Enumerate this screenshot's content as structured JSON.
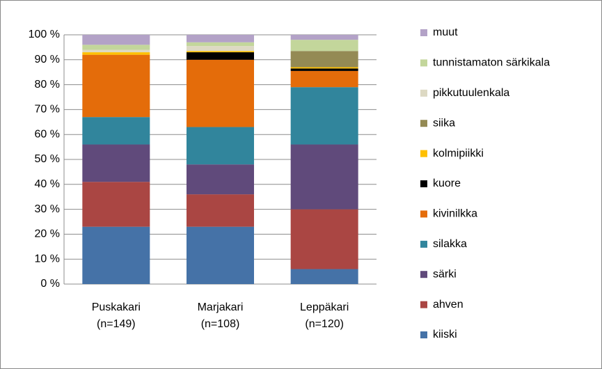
{
  "chart_data": {
    "type": "stacked_bar_percent",
    "categories": [
      [
        "Puskakari",
        "(n=149)"
      ],
      [
        "Marjakari",
        "(n=108)"
      ],
      [
        "Leppäkari",
        "(n=120)"
      ]
    ],
    "series": [
      {
        "name": "kiiski",
        "color": "#4572a7",
        "values": [
          23,
          23,
          6
        ]
      },
      {
        "name": "ahven",
        "color": "#aa4643",
        "values": [
          18,
          13,
          24
        ]
      },
      {
        "name": "särki",
        "color": "#604a7b",
        "values": [
          15,
          12,
          26
        ]
      },
      {
        "name": "silakka",
        "color": "#31859c",
        "values": [
          11,
          15,
          23
        ]
      },
      {
        "name": "kivinilkka",
        "color": "#e46c0a",
        "values": [
          25,
          27,
          6.5
        ]
      },
      {
        "name": "kuore",
        "color": "#000000",
        "values": [
          0,
          3,
          1
        ]
      },
      {
        "name": "kolmipiikki",
        "color": "#ffc000",
        "values": [
          1,
          0.5,
          0.5
        ]
      },
      {
        "name": "siika",
        "color": "#948a54",
        "values": [
          0,
          0,
          6.5
        ]
      },
      {
        "name": "pikkutuulenkala",
        "color": "#ddd9c3",
        "values": [
          1,
          2,
          0
        ]
      },
      {
        "name": "tunnistamaton särkikala",
        "color": "#c3d69b",
        "values": [
          2,
          1.5,
          4.5
        ]
      },
      {
        "name": "muut",
        "color": "#b3a2c7",
        "values": [
          4,
          3,
          2
        ]
      }
    ],
    "ylim": [
      0,
      100
    ],
    "yticks": [
      {
        "value": 0,
        "label": "0 %"
      },
      {
        "value": 10,
        "label": "10 %"
      },
      {
        "value": 20,
        "label": "20 %"
      },
      {
        "value": 30,
        "label": "30 %"
      },
      {
        "value": 40,
        "label": "40 %"
      },
      {
        "value": 50,
        "label": "50 %"
      },
      {
        "value": 60,
        "label": "60 %"
      },
      {
        "value": 70,
        "label": "70 %"
      },
      {
        "value": 80,
        "label": "80 %"
      },
      {
        "value": 90,
        "label": "90 %"
      },
      {
        "value": 100,
        "label": "100 %"
      }
    ],
    "grid": true,
    "legend": "right"
  }
}
